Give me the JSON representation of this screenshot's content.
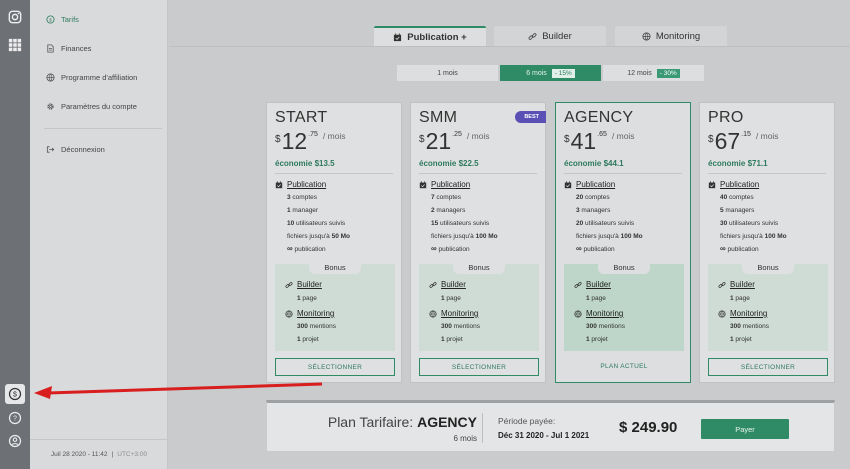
{
  "menu": {
    "items": [
      {
        "label": "Tarifs",
        "icon": "dollar-circle-icon"
      },
      {
        "label": "Finances",
        "icon": "document-icon"
      },
      {
        "label": "Programme d'affiliation",
        "icon": "globe-icon"
      },
      {
        "label": "Paramètres du compte",
        "icon": "gear-icon"
      },
      {
        "label": "Déconnexion",
        "icon": "logout-icon"
      }
    ],
    "footer_datetime": "Juil 28 2020 - 11:42",
    "footer_separator": "|",
    "footer_timezone": "UTC+3:00"
  },
  "tabs": [
    {
      "label": "Publication +",
      "icon": "calendar-icon"
    },
    {
      "label": "Builder",
      "icon": "link-icon"
    },
    {
      "label": "Monitoring",
      "icon": "globe-icon"
    }
  ],
  "periods": [
    {
      "label": "1 mois",
      "discount": ""
    },
    {
      "label": "6 mois",
      "discount": "- 15%"
    },
    {
      "label": "12 mois",
      "discount": "- 30%"
    }
  ],
  "plans": [
    {
      "name": "START",
      "currency": "$",
      "price_int": "12",
      "price_dec": ".75",
      "per": "/ mois",
      "saving": "économie $13.5",
      "publication_title": "Publication",
      "pub": [
        {
          "b": "3",
          "t": " comptes"
        },
        {
          "b": "1",
          "t": " manager"
        },
        {
          "b": "10",
          "t": " utilisateurs suivis"
        },
        {
          "pre": "fichiers jusqu'à ",
          "b": "50 Mo",
          "t": ""
        }
      ],
      "pub_infinite": "∞",
      "pub_infinite_text": " publication",
      "bonus_title": "Bonus",
      "builder_title": "Builder",
      "builder_b": "1",
      "builder_t": " page",
      "monitoring_title": "Monitoring",
      "mon1_b": "300",
      "mon1_t": " mentions",
      "mon2_b": "1",
      "mon2_t": " projet",
      "button": "SÉLECTIONNER"
    },
    {
      "name": "SMM",
      "badge": "BEST",
      "currency": "$",
      "price_int": "21",
      "price_dec": ".25",
      "per": "/ mois",
      "saving": "économie $22.5",
      "publication_title": "Publication",
      "pub": [
        {
          "b": "7",
          "t": " comptes"
        },
        {
          "b": "2",
          "t": " managers"
        },
        {
          "b": "15",
          "t": " utilisateurs suivis"
        },
        {
          "pre": "fichiers jusqu'à ",
          "b": "100 Mo",
          "t": ""
        }
      ],
      "pub_infinite": "∞",
      "pub_infinite_text": " publication",
      "bonus_title": "Bonus",
      "builder_title": "Builder",
      "builder_b": "1",
      "builder_t": " page",
      "monitoring_title": "Monitoring",
      "mon1_b": "300",
      "mon1_t": " mentions",
      "mon2_b": "1",
      "mon2_t": " projet",
      "button": "SÉLECTIONNER"
    },
    {
      "name": "AGENCY",
      "currency": "$",
      "price_int": "41",
      "price_dec": ".65",
      "per": "/ mois",
      "saving": "économie $44.1",
      "publication_title": "Publication",
      "pub": [
        {
          "b": "20",
          "t": " comptes"
        },
        {
          "b": "3",
          "t": " managers"
        },
        {
          "b": "20",
          "t": " utilisateurs suivis"
        },
        {
          "pre": "fichiers jusqu'à ",
          "b": "100 Mo",
          "t": ""
        }
      ],
      "pub_infinite": "∞",
      "pub_infinite_text": " publication",
      "bonus_title": "Bonus",
      "builder_title": "Builder",
      "builder_b": "1",
      "builder_t": " page",
      "monitoring_title": "Monitoring",
      "mon1_b": "300",
      "mon1_t": " mentions",
      "mon2_b": "1",
      "mon2_t": " projet",
      "button": "PLAN ACTUEL"
    },
    {
      "name": "PRO",
      "currency": "$",
      "price_int": "67",
      "price_dec": ".15",
      "per": "/ mois",
      "saving": "économie $71.1",
      "publication_title": "Publication",
      "pub": [
        {
          "b": "40",
          "t": " comptes"
        },
        {
          "b": "5",
          "t": " managers"
        },
        {
          "b": "30",
          "t": " utilisateurs suivis"
        },
        {
          "pre": "fichiers jusqu'à ",
          "b": "100 Mo",
          "t": ""
        }
      ],
      "pub_infinite": "∞",
      "pub_infinite_text": " publication",
      "bonus_title": "Bonus",
      "builder_title": "Builder",
      "builder_b": "1",
      "builder_t": " page",
      "monitoring_title": "Monitoring",
      "mon1_b": "300",
      "mon1_t": " mentions",
      "mon2_b": "1",
      "mon2_t": " projet",
      "button": "SÉLECTIONNER"
    }
  ],
  "summary": {
    "title_prefix": "Plan Tarifaire: ",
    "plan_name": "AGENCY",
    "months": "6 mois",
    "period_label": "Période payée:",
    "period_value": "Déc 31 2020 - Jul 1 2021",
    "total": "$ 249.90",
    "pay_button": "Payer"
  },
  "colors": {
    "accent": "#2f8a66",
    "badge": "#5a4fb5",
    "annotation_arrow": "#d81e1e"
  }
}
